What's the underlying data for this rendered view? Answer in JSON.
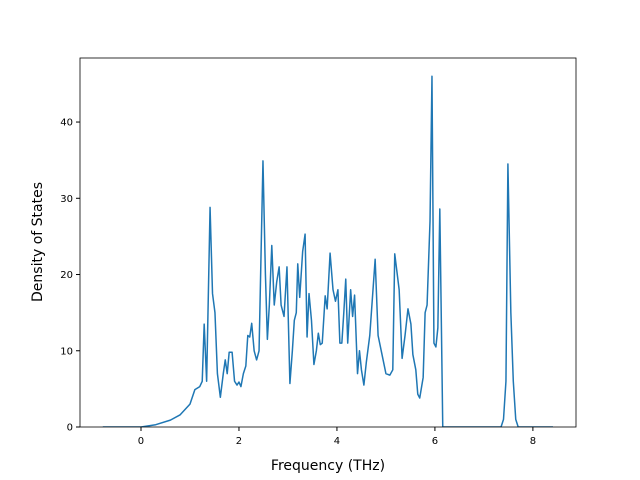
{
  "chart_data": {
    "type": "line",
    "x_label": "Frequency (THz)",
    "y_label": "Density of States",
    "x": [
      -0.78,
      0,
      0.3,
      0.6,
      0.8,
      1.0,
      1.1,
      1.2,
      1.25,
      1.29,
      1.34,
      1.41,
      1.46,
      1.51,
      1.56,
      1.62,
      1.68,
      1.72,
      1.76,
      1.8,
      1.86,
      1.91,
      1.96,
      2.0,
      2.04,
      2.09,
      2.14,
      2.18,
      2.22,
      2.26,
      2.31,
      2.36,
      2.41,
      2.49,
      2.54,
      2.58,
      2.62,
      2.67,
      2.72,
      2.77,
      2.82,
      2.86,
      2.92,
      2.98,
      3.04,
      3.09,
      3.13,
      3.17,
      3.2,
      3.24,
      3.3,
      3.35,
      3.39,
      3.43,
      3.48,
      3.53,
      3.58,
      3.62,
      3.66,
      3.7,
      3.76,
      3.8,
      3.86,
      3.92,
      3.97,
      4.02,
      4.06,
      4.1,
      4.14,
      4.18,
      4.22,
      4.28,
      4.32,
      4.36,
      4.42,
      4.46,
      4.5,
      4.55,
      4.6,
      4.67,
      4.78,
      4.84,
      4.92,
      5.0,
      5.08,
      5.14,
      5.18,
      5.27,
      5.33,
      5.39,
      5.45,
      5.51,
      5.55,
      5.61,
      5.65,
      5.69,
      5.76,
      5.8,
      5.84,
      5.9,
      5.94,
      5.98,
      6.02,
      6.06,
      6.1,
      6.16,
      7.35,
      7.4,
      7.45,
      7.49,
      7.55,
      7.6,
      7.65,
      7.7,
      8.41
    ],
    "values": [
      0,
      0,
      0.3,
      0.9,
      1.6,
      3,
      4.9,
      5.3,
      6,
      13.5,
      6,
      28.8,
      17.5,
      15,
      7,
      3.9,
      7,
      8.8,
      7,
      9.8,
      9.8,
      6,
      5.5,
      5.9,
      5.3,
      7,
      8,
      12,
      11.8,
      13.6,
      10,
      8.8,
      10,
      34.9,
      20,
      11.5,
      16,
      23.8,
      16,
      19,
      21,
      16,
      14.5,
      21,
      5.7,
      10,
      14,
      15,
      21.4,
      17,
      23,
      25.3,
      11.8,
      17.5,
      14,
      8.2,
      10,
      12.3,
      10.8,
      11,
      17.2,
      15.5,
      22.8,
      18,
      16.5,
      18,
      11,
      11,
      15,
      19.4,
      11,
      18,
      14.5,
      17.3,
      7,
      10,
      7.5,
      5.5,
      8.5,
      12,
      22,
      12,
      9.5,
      7,
      6.8,
      7.5,
      22.7,
      18,
      9,
      12,
      15.5,
      13.5,
      9.5,
      7.5,
      4.3,
      3.8,
      6.5,
      15,
      16,
      27,
      46,
      11,
      10.5,
      13,
      28.6,
      0,
      0,
      1,
      6,
      34.5,
      15,
      6,
      1,
      0,
      0
    ],
    "color": "#1f77b4",
    "xlim": [
      -1.245,
      8.88
    ],
    "ylim": [
      0,
      48.4
    ],
    "xticks": [
      0,
      2,
      4,
      6,
      8
    ],
    "yticks": [
      0,
      10,
      20,
      30,
      40
    ]
  }
}
